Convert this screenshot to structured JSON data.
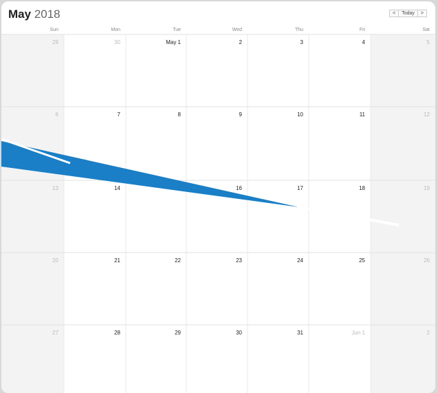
{
  "header": {
    "month": "May",
    "year": "2018",
    "buttons": [
      "<",
      "Today",
      ">"
    ]
  },
  "weekdays": [
    "Sun",
    "Mon",
    "Tue",
    "Wed",
    "Thu",
    "Fri",
    "Sat"
  ],
  "weeks": [
    [
      "29",
      "30",
      "May 1",
      "2",
      "3",
      "4",
      "5"
    ],
    [
      "6",
      "7",
      "8",
      "9",
      "10",
      "11",
      "12"
    ],
    [
      "13",
      "14",
      null,
      "16",
      "17",
      "18",
      "19"
    ],
    [
      "20",
      "21",
      "22",
      "23",
      "24",
      "25",
      "26"
    ],
    [
      "27",
      "28",
      "29",
      "30",
      "31",
      "Jun 1",
      "2"
    ]
  ]
}
